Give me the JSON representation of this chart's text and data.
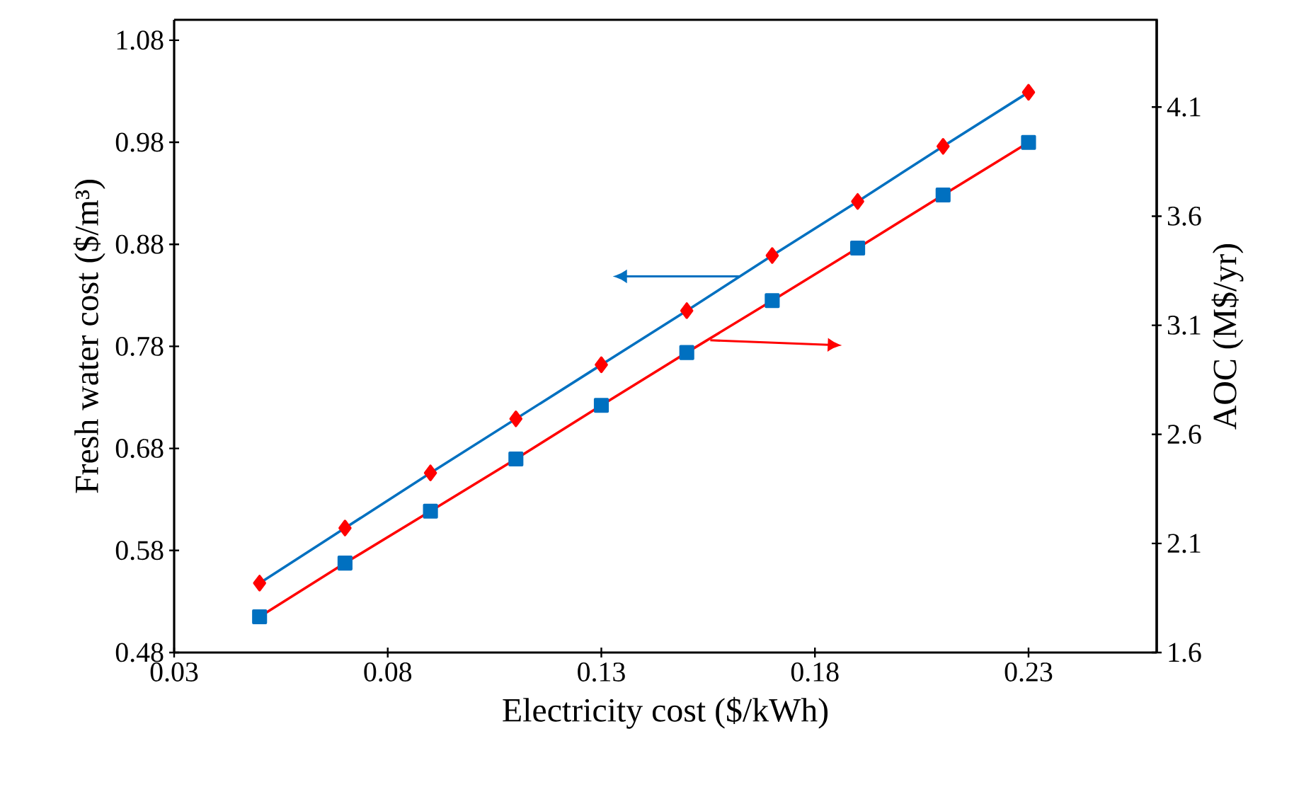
{
  "chart_data": {
    "type": "line",
    "xlabel": "Electricity cost ($/kWh)",
    "ylabel": "Fresh water cost ($/m³)",
    "y2label": "AOC (M$/yr)",
    "x": [
      0.05,
      0.07,
      0.09,
      0.11,
      0.13,
      0.15,
      0.17,
      0.19,
      0.21,
      0.23
    ],
    "series": [
      {
        "color": "#0070c0",
        "marker": "diamond",
        "values": [
          0.548,
          0.602,
          0.656,
          0.709,
          0.762,
          0.815,
          0.869,
          0.922,
          0.976,
          1.029
        ]
      },
      {
        "color": "#ff0000",
        "marker": "square",
        "axis": "y2",
        "values": [
          1.764,
          2.01,
          2.248,
          2.487,
          2.733,
          2.975,
          3.213,
          3.454,
          3.697,
          3.938
        ]
      }
    ],
    "xlim": [
      0.03,
      0.26
    ],
    "xticks": [
      0.03,
      0.08,
      0.13,
      0.18,
      0.23
    ],
    "ylim": [
      0.48,
      1.1
    ],
    "yticks": [
      0.48,
      0.58,
      0.68,
      0.78,
      0.88,
      0.98,
      1.08
    ],
    "y2lim": [
      1.6,
      4.5
    ],
    "y2ticks": [
      1.6,
      2.1,
      2.6,
      3.1,
      3.6,
      4.1
    ],
    "grid": false
  }
}
